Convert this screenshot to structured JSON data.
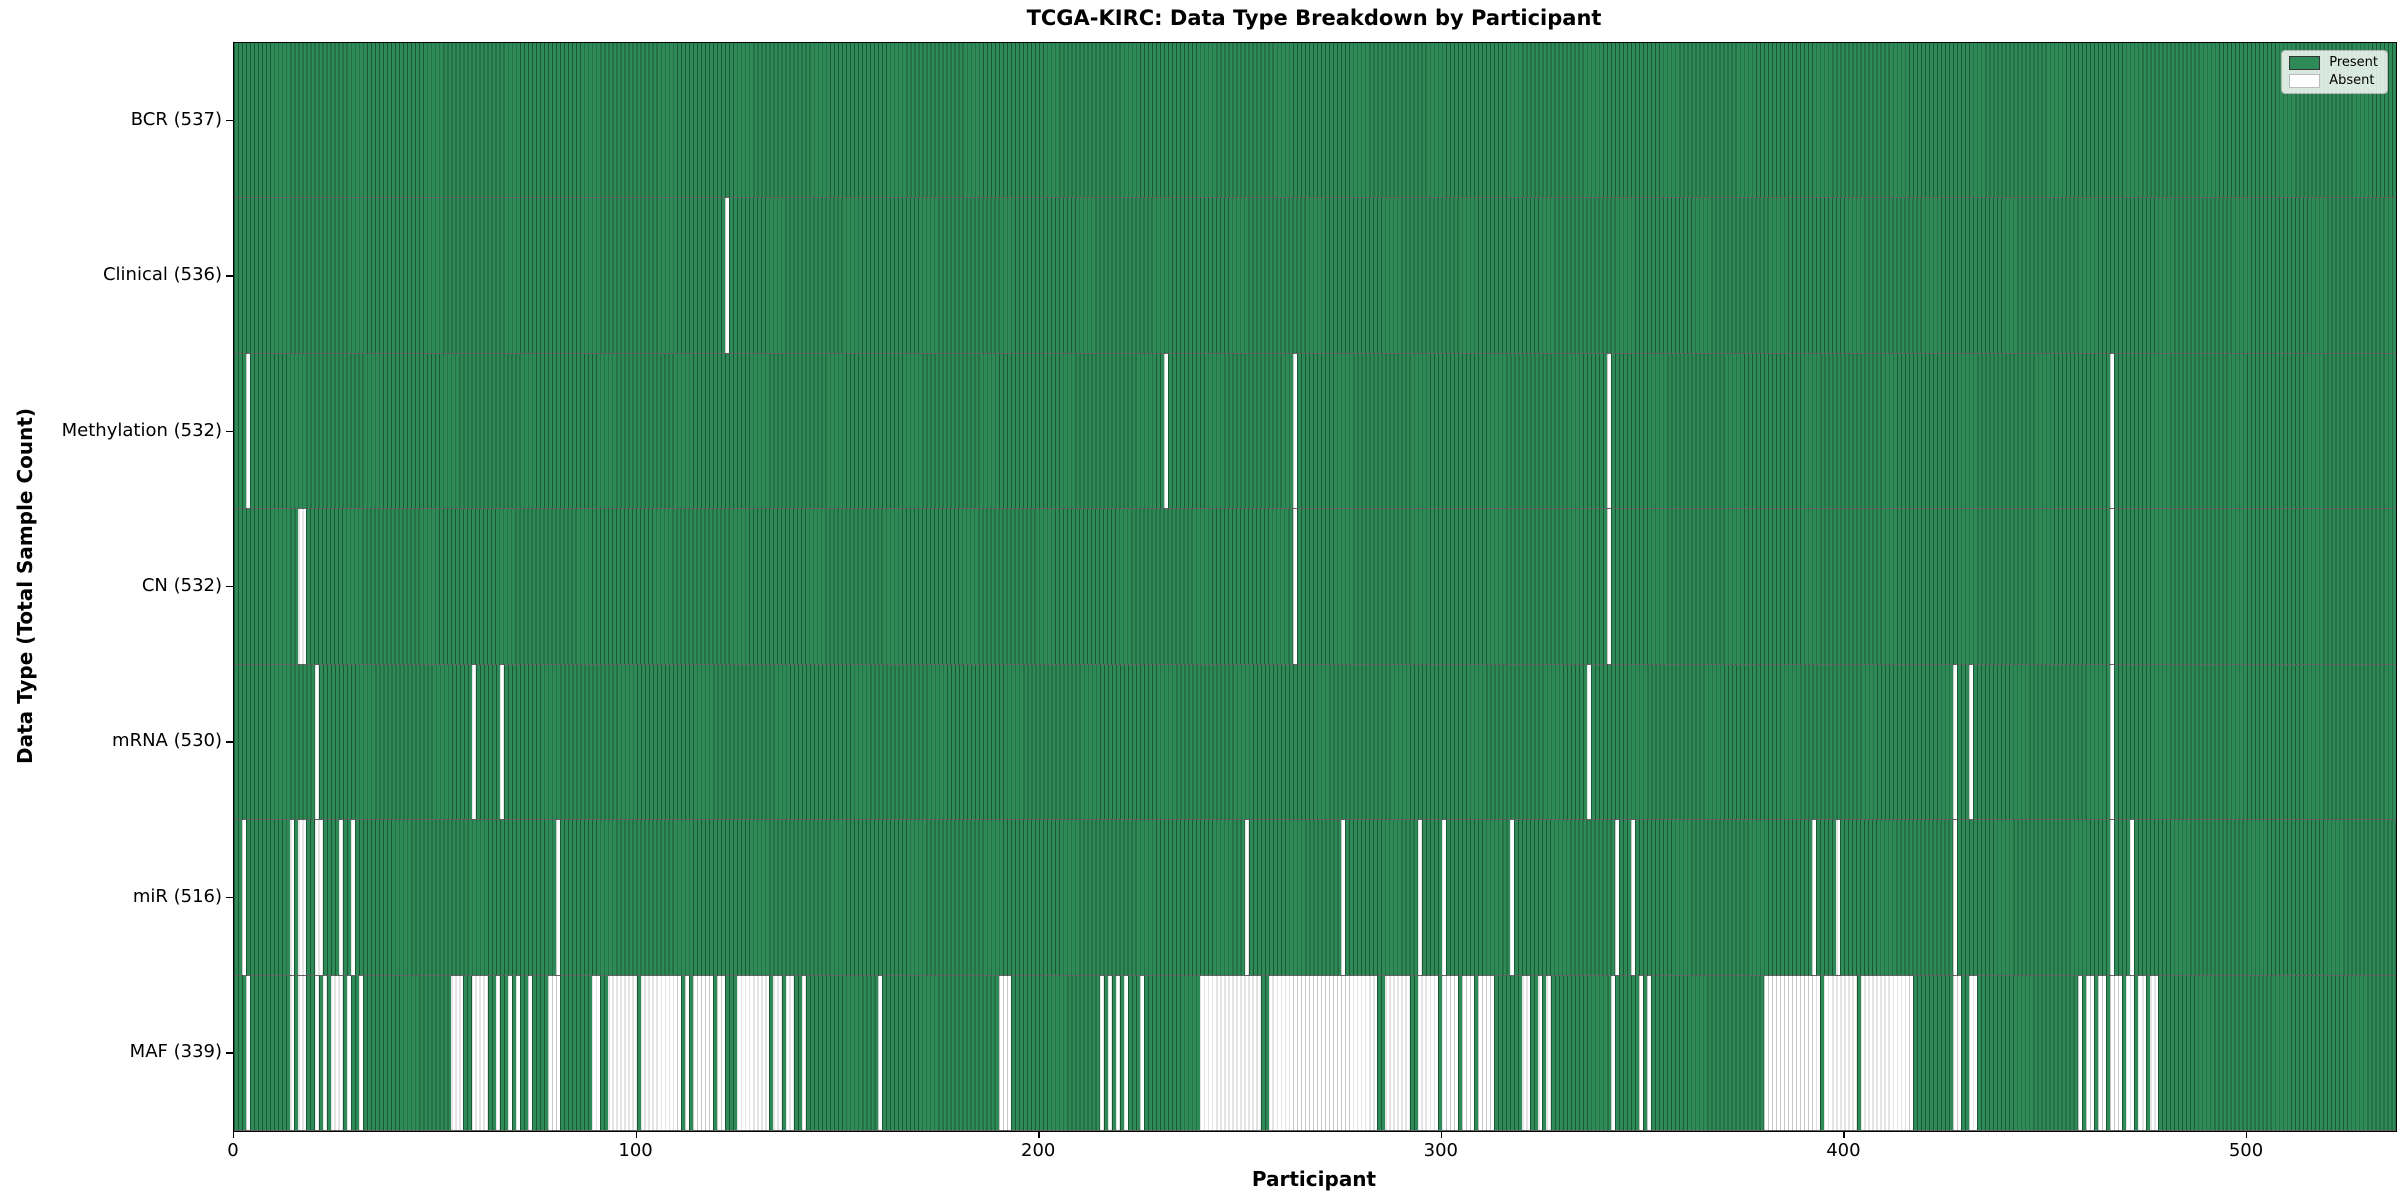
{
  "chart_data": {
    "type": "heatmap",
    "title": "TCGA-KIRC: Data Type Breakdown by Participant",
    "xlabel": "Participant",
    "ylabel": "Data Type (Total Sample Count)",
    "n_participants": 537,
    "x_ticks": [
      0,
      100,
      200,
      300,
      400,
      500
    ],
    "x_range": [
      0,
      537
    ],
    "grid": false,
    "legend_position": "upper right",
    "colors": {
      "present": "#2e8b57",
      "absent": "#ffffff",
      "background": "#ffffff"
    },
    "legend": [
      {
        "label": "Present",
        "color": "#2e8b57"
      },
      {
        "label": "Absent",
        "color": "#ffffff"
      }
    ],
    "rows": [
      {
        "label": "BCR (537)",
        "data_type": "BCR",
        "total": 537,
        "absent": []
      },
      {
        "label": "Clinical (536)",
        "data_type": "Clinical",
        "total": 536,
        "absent": [
          122
        ]
      },
      {
        "label": "Methylation (532)",
        "data_type": "Methylation",
        "total": 532,
        "absent": [
          3,
          231,
          263,
          341,
          466
        ]
      },
      {
        "label": "CN (532)",
        "data_type": "CN",
        "total": 532,
        "absent": [
          16,
          17,
          263,
          341,
          466
        ]
      },
      {
        "label": "mRNA (530)",
        "data_type": "mRNA",
        "total": 530,
        "absent": [
          20,
          59,
          66,
          336,
          427,
          431,
          466
        ]
      },
      {
        "label": "miR (516)",
        "data_type": "miR",
        "total": 516,
        "absent": [
          2,
          14,
          16,
          17,
          20,
          21,
          26,
          29,
          80,
          251,
          275,
          294,
          300,
          317,
          343,
          347,
          392,
          398,
          427,
          466,
          471
        ]
      },
      {
        "label": "MAF (339)",
        "data_type": "MAF",
        "total": 339,
        "absent": [
          3,
          14,
          16,
          17,
          20,
          22,
          24,
          25,
          26,
          28,
          31,
          54,
          55,
          56,
          59,
          60,
          61,
          62,
          65,
          68,
          70,
          73,
          78,
          79,
          80,
          89,
          90,
          93,
          94,
          95,
          96,
          97,
          98,
          99,
          101,
          102,
          103,
          104,
          105,
          106,
          107,
          108,
          109,
          110,
          112,
          114,
          115,
          116,
          117,
          118,
          120,
          121,
          125,
          126,
          127,
          128,
          129,
          130,
          131,
          132,
          134,
          135,
          137,
          138,
          141,
          160,
          190,
          191,
          192,
          215,
          217,
          219,
          221,
          225,
          240,
          241,
          242,
          243,
          244,
          245,
          246,
          247,
          248,
          249,
          250,
          251,
          252,
          253,
          254,
          257,
          258,
          259,
          260,
          261,
          262,
          263,
          264,
          265,
          266,
          267,
          268,
          269,
          270,
          271,
          272,
          273,
          274,
          275,
          276,
          277,
          278,
          279,
          280,
          281,
          282,
          283,
          286,
          287,
          288,
          289,
          290,
          291,
          294,
          295,
          296,
          297,
          298,
          300,
          301,
          302,
          303,
          305,
          306,
          307,
          309,
          310,
          311,
          312,
          320,
          321,
          324,
          326,
          342,
          349,
          351,
          380,
          381,
          382,
          383,
          384,
          385,
          386,
          387,
          388,
          389,
          390,
          391,
          392,
          393,
          395,
          396,
          397,
          398,
          399,
          400,
          401,
          402,
          404,
          405,
          406,
          407,
          408,
          409,
          410,
          411,
          412,
          413,
          414,
          415,
          416,
          427,
          428,
          431,
          432,
          458,
          460,
          461,
          463,
          464,
          466,
          467,
          468,
          470,
          471,
          473,
          474,
          476,
          477
        ]
      }
    ]
  }
}
